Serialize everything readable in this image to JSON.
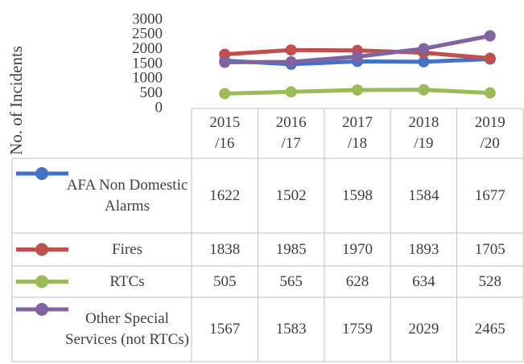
{
  "chart_data": {
    "type": "line",
    "y_label": "No. of Incidents",
    "categories": [
      "2015\n/16",
      "2016\n/17",
      "2017\n/18",
      "2018\n/19",
      "2019\n/20"
    ],
    "series": [
      {
        "name": "AFA Non Domestic Alarms",
        "color": "#4472c4",
        "values": [
          1622,
          1502,
          1598,
          1584,
          1677
        ]
      },
      {
        "name": "Fires",
        "color": "#c0504d",
        "values": [
          1838,
          1985,
          1970,
          1893,
          1705
        ]
      },
      {
        "name": "RTCs",
        "color": "#9bbb59",
        "values": [
          505,
          565,
          628,
          634,
          528
        ]
      },
      {
        "name": "Other Special Services (not RTCs)",
        "color": "#8064a2",
        "values": [
          1567,
          1583,
          1759,
          2029,
          2465
        ]
      }
    ],
    "ylim": [
      0,
      3000
    ],
    "yticks": [
      0,
      500,
      1000,
      1500,
      2000,
      2500,
      3000
    ],
    "data_table": true
  }
}
